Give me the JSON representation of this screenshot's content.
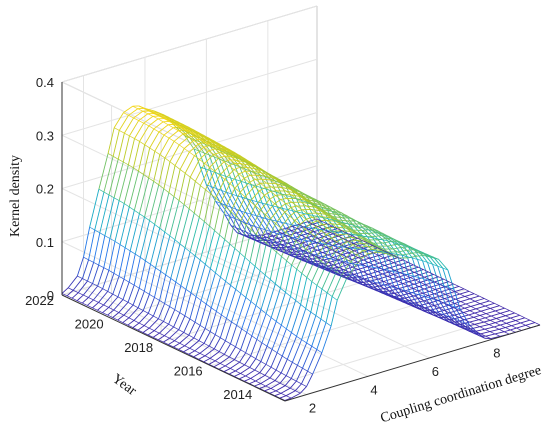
{
  "chart_data": {
    "type": "3d-surface",
    "title": "",
    "xlabel": "Coupling coordination degree",
    "ylabel": "Year",
    "zlabel": "Kernel density",
    "x_ticks": [
      "2",
      "4",
      "6",
      "8"
    ],
    "y_ticks": [
      "2014",
      "2016",
      "2018",
      "2020",
      "2022"
    ],
    "z_ticks": [
      "0",
      "0.1",
      "0.2",
      "0.3",
      "0.4"
    ],
    "xlim": [
      1.3,
      9.6
    ],
    "ylim": [
      2013,
      2022
    ],
    "zlim": [
      0,
      0.4
    ],
    "grid": true,
    "colormap": "parula",
    "x_grid": [
      1.3,
      1.5,
      1.8,
      2.0,
      2.2,
      2.5,
      2.8,
      3.0,
      3.3,
      3.6,
      3.8,
      4.0,
      4.3,
      4.6,
      4.8,
      5.0,
      5.3,
      5.6,
      5.8,
      6.0,
      6.3,
      6.6,
      6.8,
      7.0,
      7.3,
      7.6,
      7.8,
      8.0,
      8.3,
      8.6,
      8.8,
      9.0,
      9.3,
      9.6
    ],
    "years": [
      2013,
      2014,
      2015,
      2016,
      2017,
      2018,
      2019,
      2020,
      2021,
      2022
    ],
    "density_profiles": [
      [
        0.001,
        0.002,
        0.006,
        0.015,
        0.035,
        0.07,
        0.115,
        0.16,
        0.195,
        0.215,
        0.225,
        0.23,
        0.228,
        0.22,
        0.212,
        0.205,
        0.2,
        0.198,
        0.196,
        0.19,
        0.18,
        0.155,
        0.115,
        0.075,
        0.04,
        0.018,
        0.006,
        0.002,
        0.001,
        0.0,
        0.0,
        0.0,
        0.0,
        0.0
      ],
      [
        0.001,
        0.002,
        0.007,
        0.018,
        0.04,
        0.078,
        0.125,
        0.172,
        0.205,
        0.225,
        0.233,
        0.236,
        0.233,
        0.226,
        0.218,
        0.21,
        0.205,
        0.203,
        0.2,
        0.192,
        0.178,
        0.15,
        0.11,
        0.07,
        0.036,
        0.015,
        0.005,
        0.002,
        0.001,
        0.0,
        0.0,
        0.0,
        0.0,
        0.0
      ],
      [
        0.001,
        0.003,
        0.009,
        0.022,
        0.048,
        0.09,
        0.14,
        0.188,
        0.22,
        0.238,
        0.245,
        0.246,
        0.242,
        0.235,
        0.227,
        0.218,
        0.212,
        0.208,
        0.202,
        0.19,
        0.17,
        0.14,
        0.1,
        0.062,
        0.031,
        0.012,
        0.004,
        0.001,
        0.0,
        0.0,
        0.0,
        0.0,
        0.0,
        0.0
      ],
      [
        0.001,
        0.004,
        0.011,
        0.027,
        0.058,
        0.105,
        0.158,
        0.206,
        0.238,
        0.254,
        0.259,
        0.258,
        0.253,
        0.245,
        0.236,
        0.227,
        0.219,
        0.212,
        0.2,
        0.182,
        0.157,
        0.125,
        0.088,
        0.053,
        0.026,
        0.01,
        0.003,
        0.001,
        0.0,
        0.0,
        0.0,
        0.0,
        0.0,
        0.0
      ],
      [
        0.002,
        0.005,
        0.014,
        0.033,
        0.068,
        0.12,
        0.177,
        0.226,
        0.257,
        0.271,
        0.274,
        0.271,
        0.265,
        0.256,
        0.246,
        0.236,
        0.226,
        0.214,
        0.196,
        0.172,
        0.142,
        0.108,
        0.074,
        0.044,
        0.021,
        0.008,
        0.003,
        0.001,
        0.0,
        0.0,
        0.0,
        0.0,
        0.0,
        0.0
      ],
      [
        0.002,
        0.006,
        0.017,
        0.04,
        0.08,
        0.137,
        0.196,
        0.245,
        0.275,
        0.288,
        0.289,
        0.285,
        0.277,
        0.267,
        0.256,
        0.245,
        0.232,
        0.214,
        0.19,
        0.16,
        0.127,
        0.093,
        0.062,
        0.036,
        0.017,
        0.006,
        0.002,
        0.001,
        0.0,
        0.0,
        0.0,
        0.0,
        0.0,
        0.0
      ],
      [
        0.002,
        0.007,
        0.02,
        0.046,
        0.091,
        0.152,
        0.213,
        0.261,
        0.289,
        0.3,
        0.3,
        0.294,
        0.285,
        0.274,
        0.262,
        0.25,
        0.235,
        0.212,
        0.183,
        0.149,
        0.113,
        0.08,
        0.052,
        0.029,
        0.014,
        0.005,
        0.002,
        0.0,
        0.0,
        0.0,
        0.0,
        0.0,
        0.0,
        0.0
      ],
      [
        0.003,
        0.009,
        0.023,
        0.052,
        0.101,
        0.165,
        0.227,
        0.274,
        0.3,
        0.309,
        0.307,
        0.3,
        0.29,
        0.278,
        0.266,
        0.252,
        0.235,
        0.208,
        0.175,
        0.139,
        0.102,
        0.07,
        0.044,
        0.024,
        0.011,
        0.004,
        0.001,
        0.0,
        0.0,
        0.0,
        0.0,
        0.0,
        0.0,
        0.0
      ],
      [
        0.003,
        0.01,
        0.026,
        0.057,
        0.108,
        0.174,
        0.236,
        0.282,
        0.306,
        0.314,
        0.311,
        0.303,
        0.293,
        0.281,
        0.268,
        0.253,
        0.233,
        0.204,
        0.168,
        0.131,
        0.094,
        0.063,
        0.038,
        0.021,
        0.009,
        0.003,
        0.001,
        0.0,
        0.0,
        0.0,
        0.0,
        0.0,
        0.0,
        0.0
      ],
      [
        0.003,
        0.01,
        0.027,
        0.059,
        0.112,
        0.178,
        0.24,
        0.285,
        0.308,
        0.315,
        0.312,
        0.304,
        0.294,
        0.282,
        0.268,
        0.252,
        0.23,
        0.2,
        0.163,
        0.126,
        0.09,
        0.06,
        0.036,
        0.019,
        0.008,
        0.003,
        0.001,
        0.0,
        0.0,
        0.0,
        0.0,
        0.0,
        0.0,
        0.0
      ]
    ]
  }
}
